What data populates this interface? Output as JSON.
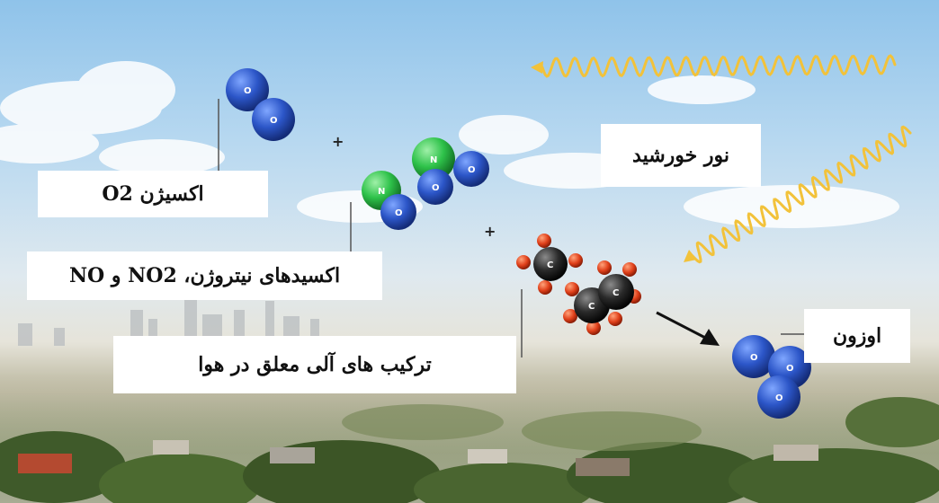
{
  "labels": {
    "oxygen": "اکسیژن O2",
    "nitrogen_oxides": "اکسیدهای نیتروژن، NO2 و NO",
    "voc": "ترکیب های آلی معلق در هوا",
    "sunlight": "نور خورشید",
    "ozone": "اوزون"
  },
  "atom_letters": {
    "oxygen": "O",
    "nitrogen": "N",
    "carbon": "C"
  },
  "colors": {
    "oxygen_atom": "#2c56c8",
    "nitrogen_atom": "#2ec24a",
    "carbon_atom": "#2a2a2a",
    "hydrogen_atom": "#e0401a",
    "sun_wave": "#f2c23a",
    "arrow": "#111111"
  },
  "icons": {
    "sunlight_waves": "sine-wave-icon",
    "reaction_arrow": "arrow-down-right-icon",
    "plus_sign": "plus-icon"
  }
}
